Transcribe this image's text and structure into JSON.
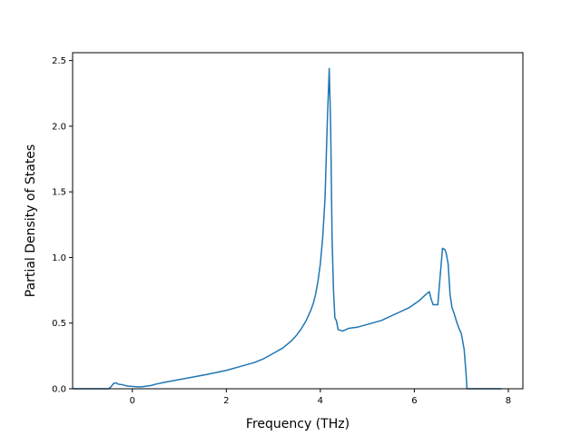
{
  "chart_data": {
    "type": "line",
    "title": "",
    "xlabel": "Frequency (THz)",
    "ylabel": "Partial Density of States",
    "xlim": [
      -1.27,
      8.31
    ],
    "ylim": [
      0,
      2.56
    ],
    "xticks": [
      0,
      2,
      4,
      6,
      8
    ],
    "xtick_labels": [
      "0",
      "2",
      "4",
      "6",
      "8"
    ],
    "yticks": [
      0.0,
      0.5,
      1.0,
      1.5,
      2.0,
      2.5
    ],
    "ytick_labels": [
      "0.0",
      "0.5",
      "1.0",
      "1.5",
      "2.0",
      "2.5"
    ],
    "grid": false,
    "legend": "none",
    "colors": {
      "line": "#1f77b4",
      "axes": "#000000",
      "background": "#ffffff"
    },
    "series": [
      {
        "x": [
          -1.25,
          -0.5,
          -0.44,
          -0.4,
          -0.35,
          -0.3,
          -0.2,
          -0.1,
          0.0,
          0.1,
          0.2,
          0.3,
          0.4,
          0.5,
          0.7,
          1.0,
          1.3,
          1.6,
          2.0,
          2.3,
          2.6,
          2.8,
          3.0,
          3.2,
          3.4,
          3.5,
          3.6,
          3.7,
          3.8,
          3.85,
          3.9,
          3.95,
          4.0,
          4.05,
          4.1,
          4.15,
          4.19,
          4.22,
          4.25,
          4.28,
          4.31,
          4.34,
          4.38,
          4.48,
          4.6,
          4.8,
          5.0,
          5.3,
          5.6,
          5.9,
          6.1,
          6.25,
          6.32,
          6.36,
          6.4,
          6.45,
          6.5,
          6.55,
          6.6,
          6.65,
          6.68,
          6.72,
          6.76,
          6.8,
          6.85,
          6.9,
          6.95,
          7.0,
          7.06,
          7.1,
          7.12,
          7.2,
          7.5,
          7.85
        ],
        "y": [
          0.0,
          0.0,
          0.02,
          0.04,
          0.045,
          0.035,
          0.03,
          0.02,
          0.018,
          0.015,
          0.015,
          0.02,
          0.025,
          0.035,
          0.05,
          0.07,
          0.09,
          0.11,
          0.14,
          0.17,
          0.2,
          0.23,
          0.27,
          0.31,
          0.37,
          0.41,
          0.46,
          0.52,
          0.6,
          0.65,
          0.72,
          0.82,
          0.95,
          1.15,
          1.45,
          2.05,
          2.44,
          2.0,
          1.15,
          0.75,
          0.54,
          0.52,
          0.45,
          0.44,
          0.46,
          0.47,
          0.49,
          0.52,
          0.57,
          0.62,
          0.67,
          0.72,
          0.74,
          0.68,
          0.64,
          0.64,
          0.64,
          0.86,
          1.07,
          1.06,
          1.03,
          0.95,
          0.72,
          0.62,
          0.57,
          0.51,
          0.46,
          0.42,
          0.3,
          0.12,
          0.0,
          0.0,
          0.0,
          0.0
        ]
      }
    ]
  }
}
